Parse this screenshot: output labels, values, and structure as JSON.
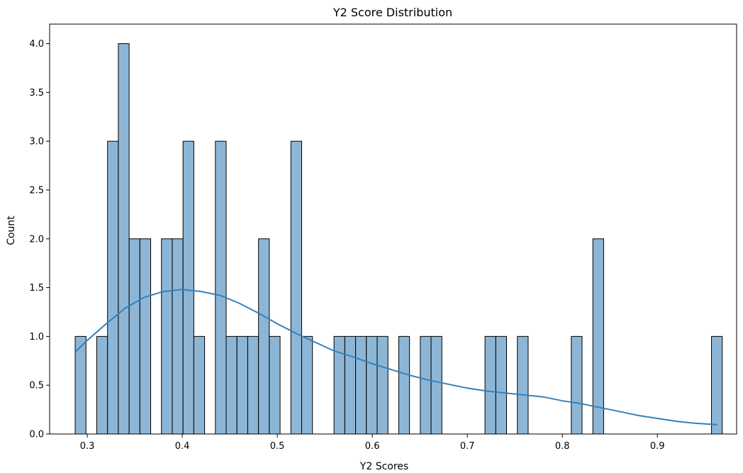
{
  "chart_data": {
    "type": "bar",
    "title": "Y2 Score Distribution",
    "xlabel": "Y2 Scores",
    "ylabel": "Count",
    "xlim": [
      0.2604,
      0.9834
    ],
    "ylim": [
      0.0,
      4.2
    ],
    "xticks": [
      0.3,
      0.4,
      0.5,
      0.6,
      0.7,
      0.8,
      0.9
    ],
    "xtick_labels": [
      "0.3",
      "0.4",
      "0.5",
      "0.6",
      "0.7",
      "0.8",
      "0.9"
    ],
    "yticks": [
      0.0,
      0.5,
      1.0,
      1.5,
      2.0,
      2.5,
      3.0,
      3.5,
      4.0
    ],
    "ytick_labels": [
      "0.0",
      "0.5",
      "1.0",
      "1.5",
      "2.0",
      "2.5",
      "3.0",
      "3.5",
      "4.0"
    ],
    "bin_start": 0.2873,
    "bin_width": 0.01135,
    "counts": [
      1,
      0,
      1,
      3,
      4,
      2,
      2,
      0,
      2,
      2,
      3,
      1,
      0,
      3,
      1,
      1,
      1,
      2,
      1,
      0,
      3,
      1,
      0,
      0,
      1,
      1,
      1,
      1,
      1,
      0,
      1,
      0,
      1,
      1,
      0,
      0,
      0,
      0,
      1,
      1,
      0,
      1,
      0,
      0,
      0,
      0,
      1,
      0,
      2,
      0,
      0,
      0,
      0,
      0,
      0,
      0,
      0,
      0,
      0,
      1
    ],
    "bar_color": "#8db6d6",
    "bar_edge_color": "#000000",
    "kde_color": "#3182bd",
    "kde_curve": [
      [
        0.2873,
        0.84
      ],
      [
        0.3,
        0.96
      ],
      [
        0.32,
        1.13
      ],
      [
        0.34,
        1.29
      ],
      [
        0.36,
        1.4
      ],
      [
        0.38,
        1.46
      ],
      [
        0.4,
        1.48
      ],
      [
        0.42,
        1.46
      ],
      [
        0.44,
        1.42
      ],
      [
        0.46,
        1.34
      ],
      [
        0.48,
        1.24
      ],
      [
        0.5,
        1.13
      ],
      [
        0.52,
        1.03
      ],
      [
        0.54,
        0.94
      ],
      [
        0.56,
        0.85
      ],
      [
        0.58,
        0.79
      ],
      [
        0.6,
        0.72
      ],
      [
        0.62,
        0.66
      ],
      [
        0.64,
        0.6
      ],
      [
        0.66,
        0.55
      ],
      [
        0.68,
        0.51
      ],
      [
        0.7,
        0.47
      ],
      [
        0.72,
        0.44
      ],
      [
        0.74,
        0.42
      ],
      [
        0.76,
        0.4
      ],
      [
        0.78,
        0.38
      ],
      [
        0.8,
        0.34
      ],
      [
        0.82,
        0.31
      ],
      [
        0.84,
        0.27
      ],
      [
        0.86,
        0.23
      ],
      [
        0.88,
        0.19
      ],
      [
        0.9,
        0.16
      ],
      [
        0.92,
        0.13
      ],
      [
        0.94,
        0.11
      ],
      [
        0.963,
        0.095
      ]
    ],
    "grid": false,
    "legend": false
  }
}
